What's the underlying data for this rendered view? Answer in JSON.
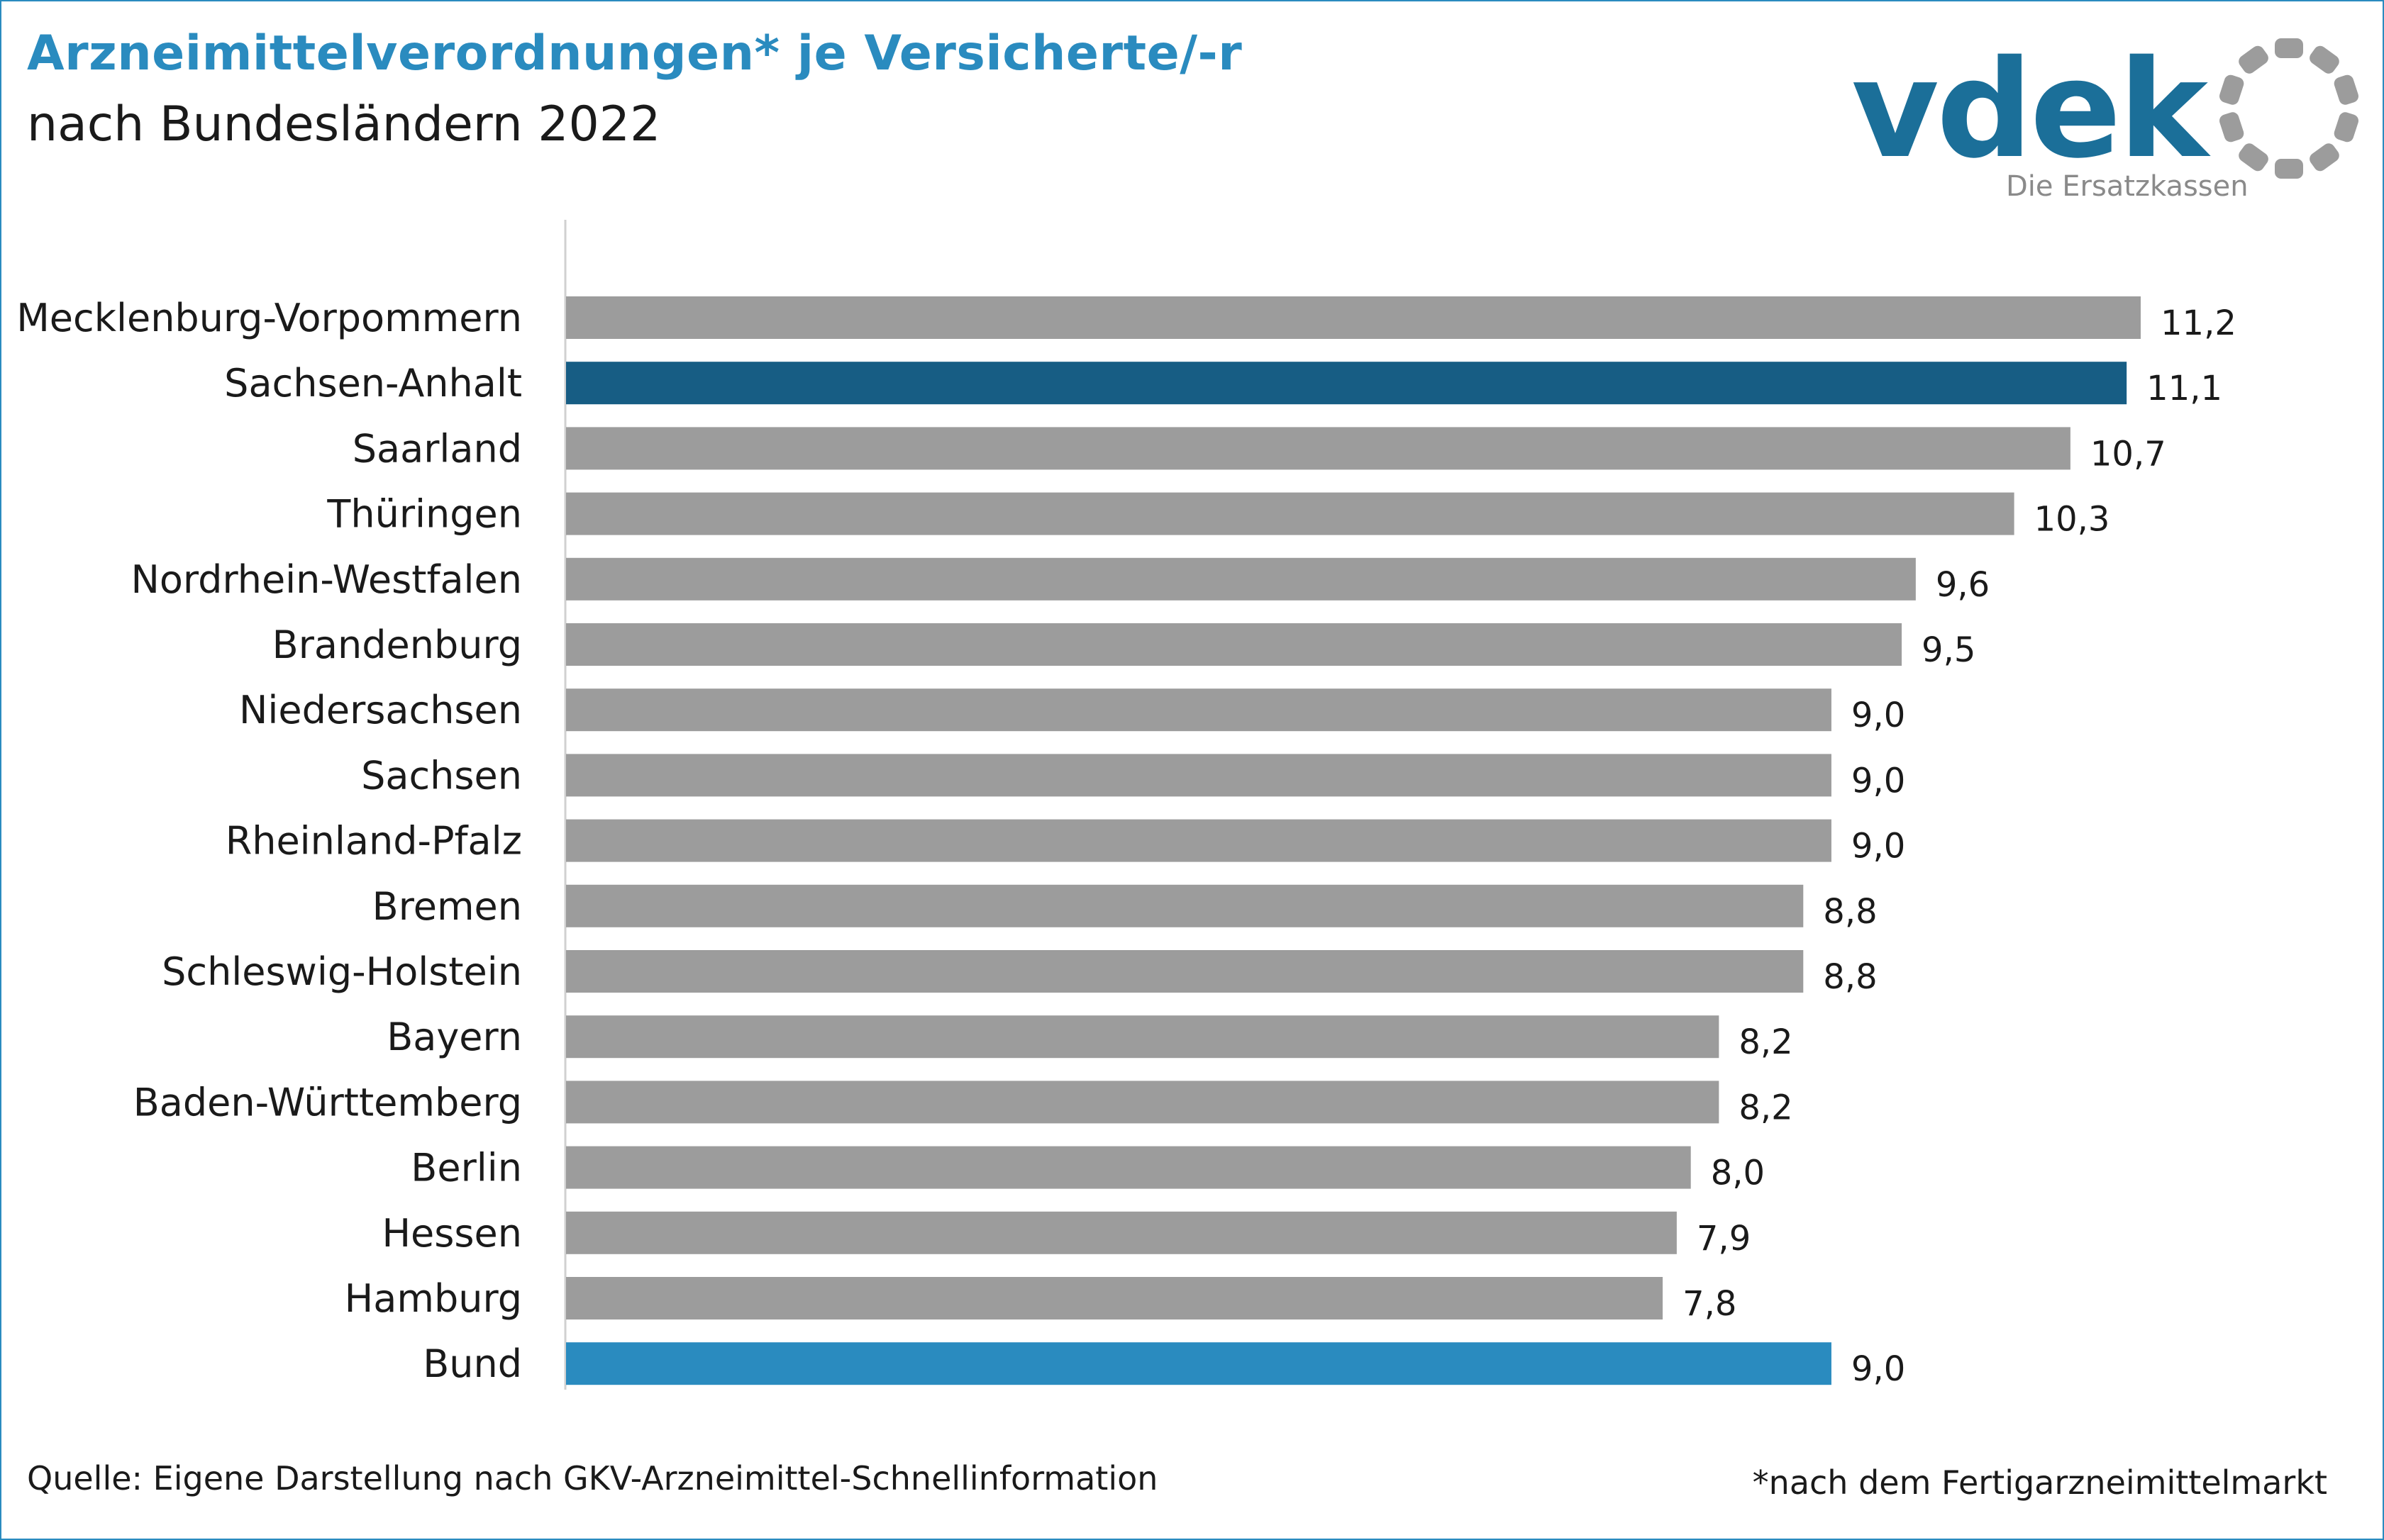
{
  "header": {
    "title": "Arzneimittelverordnungen* je Versicherte/-r",
    "subtitle": "nach Bundesländern 2022"
  },
  "logo": {
    "wordmark": "vdek",
    "tagline": "Die Ersatzkassen",
    "color": "#1b6f99",
    "ring_color": "#9c9c9c"
  },
  "footer": {
    "source": "Quelle: Eigene Darstellung nach GKV-Arzneimittel-Schnellinformation",
    "note": "*nach dem Fertigarzneimittelmarkt"
  },
  "colors": {
    "default_bar": "#9c9c9c",
    "highlight_bar": "#175d84",
    "total_bar": "#2a8bbf"
  },
  "chart_data": {
    "type": "bar",
    "orientation": "horizontal",
    "categories": [
      "Mecklenburg-Vorpommern",
      "Sachsen-Anhalt",
      "Saarland",
      "Thüringen",
      "Nordrhein-Westfalen",
      "Brandenburg",
      "Niedersachsen",
      "Sachsen",
      "Rheinland-Pfalz",
      "Bremen",
      "Schleswig-Holstein",
      "Bayern",
      "Baden-Württemberg",
      "Berlin",
      "Hessen",
      "Hamburg",
      "Bund"
    ],
    "values": [
      11.2,
      11.1,
      10.7,
      10.3,
      9.6,
      9.5,
      9.0,
      9.0,
      9.0,
      8.8,
      8.8,
      8.2,
      8.2,
      8.0,
      7.9,
      7.8,
      9.0
    ],
    "value_labels": [
      "11,2",
      "11,1",
      "10,7",
      "10,3",
      "9,6",
      "9,5",
      "9,0",
      "9,0",
      "9,0",
      "8,8",
      "8,8",
      "8,2",
      "8,2",
      "8,0",
      "7,9",
      "7,8",
      "9,0"
    ],
    "bar_colors": [
      "default",
      "highlight",
      "default",
      "default",
      "default",
      "default",
      "default",
      "default",
      "default",
      "default",
      "default",
      "default",
      "default",
      "default",
      "default",
      "default",
      "total"
    ],
    "xlim": [
      0,
      11.4
    ],
    "grid": false,
    "legend": "none"
  }
}
